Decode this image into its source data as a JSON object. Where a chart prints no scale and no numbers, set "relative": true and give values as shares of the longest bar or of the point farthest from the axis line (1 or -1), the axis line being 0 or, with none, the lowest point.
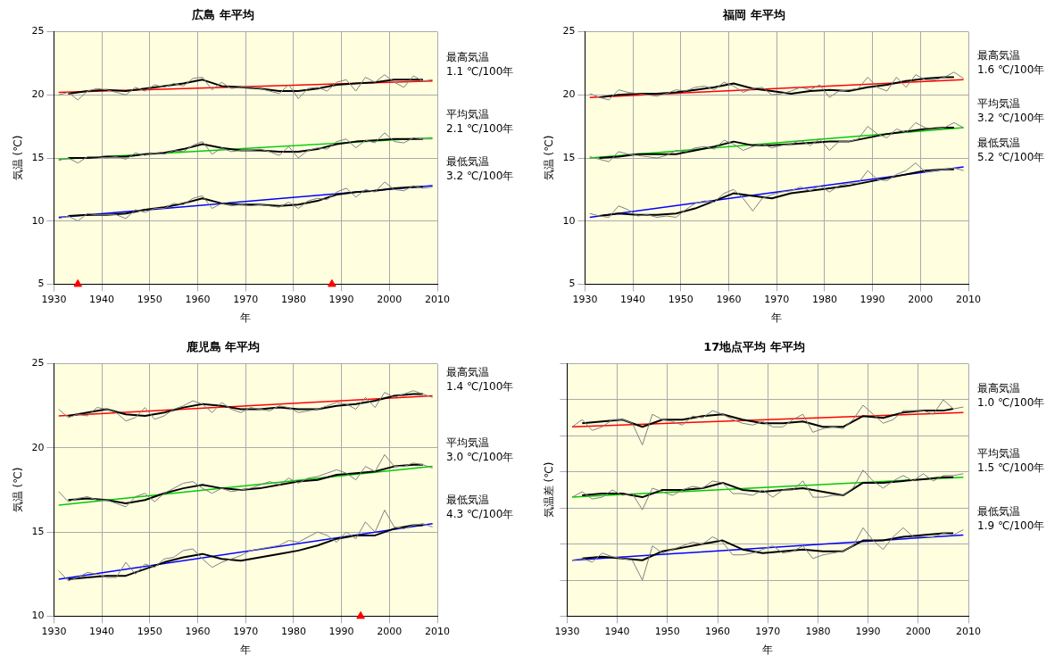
{
  "chart_data": [
    {
      "type": "line",
      "title": "広島 年平均",
      "xlabel": "年",
      "ylabel": "気温 (℃)",
      "xlim": [
        1930,
        2010
      ],
      "xticks": [
        1930,
        1940,
        1950,
        1960,
        1970,
        1980,
        1990,
        2000,
        2010
      ],
      "ylim": [
        5,
        25
      ],
      "yticks": [
        5,
        10,
        15,
        20,
        25
      ],
      "grid": true,
      "marker": "none",
      "line_style": "solid",
      "x": [
        1931,
        1933,
        1935,
        1937,
        1939,
        1941,
        1943,
        1945,
        1947,
        1949,
        1951,
        1953,
        1955,
        1957,
        1959,
        1961,
        1963,
        1965,
        1967,
        1969,
        1971,
        1973,
        1975,
        1977,
        1979,
        1981,
        1983,
        1985,
        1987,
        1989,
        1991,
        1993,
        1995,
        1997,
        1999,
        2001,
        2003,
        2005,
        2007,
        2009
      ],
      "series": [
        {
          "color": "#808080",
          "values": [
            20.0,
            20.2,
            19.6,
            20.3,
            20.5,
            20.4,
            20.2,
            20.0,
            20.6,
            20.3,
            20.8,
            20.6,
            20.9,
            20.7,
            21.3,
            21.4,
            20.4,
            21.0,
            20.5,
            20.6,
            20.6,
            20.5,
            20.3,
            20.1,
            20.8,
            19.7,
            20.5,
            20.6,
            20.3,
            21.0,
            21.2,
            20.3,
            21.4,
            21.0,
            21.6,
            21.0,
            20.6,
            21.5,
            21.1,
            21.2
          ]
        },
        {
          "color": "#000000",
          "x": [
            1933,
            1937,
            1941,
            1945,
            1949,
            1953,
            1957,
            1961,
            1965,
            1969,
            1973,
            1977,
            1981,
            1985,
            1989,
            1993,
            1997,
            2001,
            2005,
            2007
          ],
          "values": [
            20.1,
            20.3,
            20.4,
            20.3,
            20.5,
            20.7,
            20.9,
            21.2,
            20.7,
            20.6,
            20.5,
            20.3,
            20.3,
            20.5,
            20.8,
            20.9,
            21.0,
            21.2,
            21.2,
            21.2
          ]
        },
        {
          "color": "#ff0000",
          "x": [
            1931,
            2009
          ],
          "values": [
            20.2,
            21.1
          ]
        },
        {
          "color": "#808080",
          "values": [
            14.8,
            15.0,
            14.6,
            15.1,
            15.1,
            15.0,
            15.1,
            14.9,
            15.4,
            15.2,
            15.4,
            15.3,
            15.6,
            15.5,
            16.0,
            16.3,
            15.3,
            15.8,
            15.5,
            15.6,
            15.6,
            15.7,
            15.5,
            15.2,
            15.9,
            15.0,
            15.6,
            15.8,
            15.7,
            16.3,
            16.5,
            15.8,
            16.4,
            16.2,
            17.0,
            16.3,
            16.2,
            16.6,
            16.5,
            16.5
          ]
        },
        {
          "color": "#000000",
          "x": [
            1933,
            1937,
            1941,
            1945,
            1949,
            1953,
            1957,
            1961,
            1965,
            1969,
            1973,
            1977,
            1981,
            1985,
            1989,
            1993,
            1997,
            2001,
            2005,
            2007
          ],
          "values": [
            15.0,
            15.0,
            15.1,
            15.1,
            15.3,
            15.4,
            15.7,
            16.1,
            15.8,
            15.6,
            15.6,
            15.5,
            15.5,
            15.7,
            16.1,
            16.3,
            16.4,
            16.5,
            16.5,
            16.5
          ]
        },
        {
          "color": "#00cc00",
          "x": [
            1931,
            2009
          ],
          "values": [
            14.9,
            16.6
          ]
        },
        {
          "color": "#808080",
          "values": [
            10.2,
            10.4,
            10.0,
            10.6,
            10.5,
            10.5,
            10.5,
            10.2,
            10.9,
            10.7,
            11.0,
            11.0,
            11.4,
            11.3,
            11.8,
            12.0,
            11.0,
            11.4,
            11.2,
            11.3,
            11.2,
            11.3,
            11.2,
            11.1,
            11.5,
            11.0,
            11.6,
            11.8,
            11.7,
            12.3,
            12.6,
            11.9,
            12.5,
            12.3,
            13.1,
            12.5,
            12.4,
            12.8,
            12.6,
            12.7
          ]
        },
        {
          "color": "#000000",
          "x": [
            1933,
            1937,
            1941,
            1945,
            1949,
            1953,
            1957,
            1961,
            1965,
            1969,
            1973,
            1977,
            1981,
            1985,
            1989,
            1993,
            1997,
            2001,
            2005,
            2007
          ],
          "values": [
            10.4,
            10.5,
            10.5,
            10.6,
            10.9,
            11.1,
            11.4,
            11.8,
            11.4,
            11.3,
            11.3,
            11.2,
            11.3,
            11.6,
            12.1,
            12.3,
            12.4,
            12.6,
            12.7,
            12.7
          ]
        },
        {
          "color": "#0000ff",
          "x": [
            1931,
            2009
          ],
          "values": [
            10.3,
            12.8
          ]
        },
        {
          "type": "scatter",
          "marker": "triangle",
          "color": "#ff0000",
          "x": [
            1935,
            1988
          ],
          "values": [
            5,
            5
          ]
        }
      ],
      "annotations": [
        "最高気温\n1.1 ℃/100年",
        "平均気温\n2.1 ℃/100年",
        "最低気温\n3.2 ℃/100年"
      ]
    },
    {
      "type": "line",
      "title": "福岡 年平均",
      "xlabel": "年",
      "ylabel": "気温 (℃)",
      "xlim": [
        1930,
        2010
      ],
      "xticks": [
        1930,
        1940,
        1950,
        1960,
        1970,
        1980,
        1990,
        2000,
        2010
      ],
      "ylim": [
        5,
        25
      ],
      "yticks": [
        5,
        10,
        15,
        20,
        25
      ],
      "grid": true,
      "marker": "none",
      "line_style": "solid",
      "x": [
        1931,
        1933,
        1935,
        1937,
        1939,
        1941,
        1943,
        1945,
        1947,
        1949,
        1951,
        1953,
        1955,
        1957,
        1959,
        1961,
        1963,
        1965,
        1967,
        1969,
        1971,
        1973,
        1975,
        1977,
        1979,
        1981,
        1983,
        1985,
        1987,
        1989,
        1991,
        1993,
        1995,
        1997,
        1999,
        2001,
        2003,
        2005,
        2007,
        2009
      ],
      "series": [
        {
          "color": "#808080",
          "values": [
            20.1,
            19.8,
            19.6,
            20.4,
            20.2,
            20.1,
            20.0,
            19.9,
            20.1,
            20.4,
            20.3,
            20.6,
            20.7,
            20.4,
            21.0,
            20.7,
            20.2,
            20.5,
            20.6,
            20.0,
            20.1,
            20.3,
            20.6,
            20.4,
            20.8,
            19.8,
            20.3,
            20.4,
            20.5,
            21.4,
            20.6,
            20.3,
            21.4,
            20.6,
            21.6,
            21.2,
            21.2,
            21.4,
            21.8,
            21.3
          ]
        },
        {
          "color": "#000000",
          "x": [
            1933,
            1937,
            1941,
            1945,
            1949,
            1953,
            1957,
            1961,
            1965,
            1969,
            1973,
            1977,
            1981,
            1985,
            1989,
            1993,
            1997,
            2001,
            2005,
            2007
          ],
          "values": [
            19.8,
            20.0,
            20.1,
            20.1,
            20.2,
            20.4,
            20.6,
            20.9,
            20.5,
            20.3,
            20.1,
            20.3,
            20.4,
            20.3,
            20.6,
            20.8,
            21.1,
            21.3,
            21.4,
            21.4
          ]
        },
        {
          "color": "#ff0000",
          "x": [
            1931,
            2009
          ],
          "values": [
            19.8,
            21.2
          ]
        },
        {
          "color": "#808080",
          "values": [
            15.1,
            14.9,
            14.7,
            15.5,
            15.3,
            15.2,
            15.1,
            15.0,
            15.2,
            15.6,
            15.5,
            15.8,
            15.9,
            15.7,
            16.4,
            16.1,
            15.6,
            15.9,
            16.1,
            15.8,
            16.0,
            16.1,
            16.4,
            16.0,
            16.5,
            15.6,
            16.3,
            16.3,
            16.5,
            17.5,
            16.9,
            16.6,
            17.3,
            17.0,
            17.8,
            17.4,
            17.3,
            17.4,
            17.8,
            17.4
          ]
        },
        {
          "color": "#000000",
          "x": [
            1933,
            1937,
            1941,
            1945,
            1949,
            1953,
            1957,
            1961,
            1965,
            1969,
            1973,
            1977,
            1981,
            1985,
            1989,
            1993,
            1997,
            2001,
            2005,
            2007
          ],
          "values": [
            15.0,
            15.1,
            15.3,
            15.3,
            15.3,
            15.6,
            15.9,
            16.3,
            16.0,
            16.0,
            16.1,
            16.2,
            16.3,
            16.3,
            16.6,
            16.9,
            17.1,
            17.3,
            17.4,
            17.4
          ]
        },
        {
          "color": "#00cc00",
          "x": [
            1931,
            2009
          ],
          "values": [
            15.0,
            17.4
          ]
        },
        {
          "color": "#808080",
          "values": [
            10.6,
            10.4,
            10.3,
            11.2,
            10.9,
            10.4,
            10.5,
            10.3,
            10.4,
            10.3,
            10.9,
            11.4,
            11.6,
            11.5,
            12.2,
            12.5,
            11.8,
            10.8,
            11.8,
            12.1,
            12.3,
            12.4,
            12.7,
            12.4,
            12.8,
            12.3,
            12.8,
            13.0,
            13.0,
            14.0,
            13.3,
            13.2,
            13.7,
            14.0,
            14.6,
            13.9,
            14.0,
            14.1,
            14.2,
            14.0
          ]
        },
        {
          "color": "#000000",
          "x": [
            1933,
            1937,
            1941,
            1945,
            1949,
            1953,
            1957,
            1961,
            1965,
            1969,
            1973,
            1977,
            1981,
            1985,
            1989,
            1993,
            1997,
            2001,
            2005,
            2007
          ],
          "values": [
            10.4,
            10.6,
            10.5,
            10.5,
            10.6,
            11.0,
            11.6,
            12.2,
            12.0,
            11.8,
            12.2,
            12.4,
            12.6,
            12.8,
            13.1,
            13.4,
            13.7,
            14.0,
            14.1,
            14.1
          ]
        },
        {
          "color": "#0000ff",
          "x": [
            1931,
            2009
          ],
          "values": [
            10.3,
            14.3
          ]
        }
      ],
      "annotations": [
        "最高気温\n1.6 ℃/100年",
        "平均気温\n3.2 ℃/100年",
        "最低気温\n5.2 ℃/100年"
      ]
    },
    {
      "type": "line",
      "title": "鹿児島 年平均",
      "xlabel": "年",
      "ylabel": "気温 (℃)",
      "xlim": [
        1930,
        2010
      ],
      "xticks": [
        1930,
        1940,
        1950,
        1960,
        1970,
        1980,
        1990,
        2000,
        2010
      ],
      "ylim": [
        10,
        25
      ],
      "yticks": [
        10,
        15,
        20,
        25
      ],
      "grid": true,
      "marker": "none",
      "line_style": "solid",
      "x": [
        1931,
        1933,
        1935,
        1937,
        1939,
        1941,
        1943,
        1945,
        1947,
        1949,
        1951,
        1953,
        1955,
        1957,
        1959,
        1961,
        1963,
        1965,
        1967,
        1969,
        1971,
        1973,
        1975,
        1977,
        1979,
        1981,
        1983,
        1985,
        1987,
        1989,
        1991,
        1993,
        1995,
        1997,
        1999,
        2001,
        2003,
        2005,
        2007,
        2009
      ],
      "series": [
        {
          "color": "#808080",
          "values": [
            22.3,
            21.8,
            22.0,
            21.9,
            22.4,
            22.3,
            22.1,
            21.6,
            21.8,
            22.4,
            21.7,
            21.9,
            22.3,
            22.5,
            22.8,
            22.6,
            22.1,
            22.7,
            22.3,
            22.1,
            22.4,
            22.3,
            22.2,
            22.5,
            22.4,
            22.1,
            22.2,
            22.3,
            22.5,
            22.7,
            22.6,
            22.3,
            23.0,
            22.4,
            23.3,
            23.0,
            23.2,
            23.4,
            23.2,
            23.0
          ]
        },
        {
          "color": "#000000",
          "x": [
            1933,
            1937,
            1941,
            1945,
            1949,
            1953,
            1957,
            1961,
            1965,
            1969,
            1973,
            1977,
            1981,
            1985,
            1989,
            1993,
            1997,
            2001,
            2005,
            2007
          ],
          "values": [
            21.9,
            22.1,
            22.3,
            22.0,
            21.9,
            22.1,
            22.4,
            22.6,
            22.5,
            22.3,
            22.3,
            22.4,
            22.3,
            22.3,
            22.5,
            22.6,
            22.8,
            23.1,
            23.2,
            23.2
          ]
        },
        {
          "color": "#ff0000",
          "x": [
            1931,
            2009
          ],
          "values": [
            21.9,
            23.1
          ]
        },
        {
          "color": "#808080",
          "values": [
            17.4,
            16.8,
            17.0,
            17.1,
            16.9,
            16.9,
            16.7,
            16.5,
            17.1,
            17.3,
            16.8,
            17.3,
            17.6,
            17.9,
            18.0,
            17.6,
            17.3,
            17.6,
            17.4,
            17.5,
            17.6,
            17.8,
            18.0,
            17.8,
            18.2,
            17.9,
            18.2,
            18.3,
            18.5,
            18.7,
            18.5,
            18.1,
            18.9,
            18.6,
            19.6,
            18.9,
            18.9,
            19.1,
            19.0,
            18.8
          ]
        },
        {
          "color": "#000000",
          "x": [
            1933,
            1937,
            1941,
            1945,
            1949,
            1953,
            1957,
            1961,
            1965,
            1969,
            1973,
            1977,
            1981,
            1985,
            1989,
            1993,
            1997,
            2001,
            2005,
            2007
          ],
          "values": [
            16.9,
            17.0,
            16.9,
            16.7,
            16.9,
            17.3,
            17.6,
            17.8,
            17.6,
            17.5,
            17.6,
            17.8,
            18.0,
            18.1,
            18.4,
            18.5,
            18.6,
            18.9,
            19.0,
            19.0
          ]
        },
        {
          "color": "#00cc00",
          "x": [
            1931,
            2009
          ],
          "values": [
            16.6,
            18.9
          ]
        },
        {
          "color": "#808080",
          "values": [
            12.7,
            12.1,
            12.3,
            12.6,
            12.5,
            12.3,
            12.3,
            13.2,
            12.5,
            13.1,
            12.9,
            13.4,
            13.5,
            13.9,
            14.0,
            13.4,
            12.9,
            13.2,
            13.4,
            13.6,
            13.9,
            14.0,
            14.1,
            14.2,
            14.5,
            14.4,
            14.7,
            15.0,
            14.8,
            14.4,
            15.0,
            14.6,
            15.6,
            15.0,
            16.3,
            15.3,
            15.2,
            15.4,
            15.5,
            15.3
          ]
        },
        {
          "color": "#000000",
          "x": [
            1933,
            1937,
            1941,
            1945,
            1949,
            1953,
            1957,
            1961,
            1965,
            1969,
            1973,
            1977,
            1981,
            1985,
            1989,
            1993,
            1997,
            2001,
            2005,
            2007
          ],
          "values": [
            12.2,
            12.3,
            12.4,
            12.4,
            12.8,
            13.2,
            13.5,
            13.7,
            13.4,
            13.3,
            13.5,
            13.7,
            13.9,
            14.2,
            14.6,
            14.8,
            14.8,
            15.2,
            15.4,
            15.4
          ]
        },
        {
          "color": "#0000ff",
          "x": [
            1931,
            2009
          ],
          "values": [
            12.2,
            15.5
          ]
        },
        {
          "type": "scatter",
          "marker": "triangle",
          "color": "#ff0000",
          "x": [
            1994
          ],
          "values": [
            10
          ]
        }
      ],
      "annotations": [
        "最高気温\n1.4 ℃/100年",
        "平均気温\n3.0 ℃/100年",
        "最低気温\n4.3 ℃/100年"
      ]
    },
    {
      "type": "line",
      "title": "17地点平均 年平均",
      "xlabel": "年",
      "ylabel": "気温差 (℃)",
      "xlim": [
        1930,
        2010
      ],
      "xticks": [
        1930,
        1940,
        1950,
        1960,
        1970,
        1980,
        1990,
        2000,
        2010
      ],
      "relative": true,
      "tick_labels": "x",
      "grid": true,
      "marker": "none",
      "line_style": "solid",
      "x": [
        1931,
        1933,
        1935,
        1937,
        1939,
        1941,
        1943,
        1945,
        1947,
        1949,
        1951,
        1953,
        1955,
        1957,
        1959,
        1961,
        1963,
        1965,
        1967,
        1969,
        1971,
        1973,
        1975,
        1977,
        1979,
        1981,
        1983,
        1985,
        1987,
        1989,
        1991,
        1993,
        1995,
        1997,
        1999,
        2001,
        2003,
        2005,
        2007,
        2009
      ],
      "series": [
        {
          "color": "#808080",
          "values": [
            0.85,
            0.89,
            0.83,
            0.85,
            0.89,
            0.89,
            0.87,
            0.75,
            0.92,
            0.89,
            0.88,
            0.86,
            0.91,
            0.9,
            0.94,
            0.92,
            0.89,
            0.87,
            0.86,
            0.88,
            0.85,
            0.85,
            0.89,
            0.92,
            0.82,
            0.84,
            0.85,
            0.84,
            0.89,
            0.97,
            0.92,
            0.87,
            0.89,
            0.94,
            0.94,
            0.94,
            0.92,
            1,
            0.95,
            0.96
          ]
        },
        {
          "color": "#000000",
          "x": [
            1933,
            1937,
            1941,
            1945,
            1949,
            1953,
            1957,
            1961,
            1965,
            1969,
            1973,
            1977,
            1981,
            1985,
            1989,
            1993,
            1997,
            2001,
            2005,
            2007
          ],
          "values": [
            0.87,
            0.88,
            0.89,
            0.85,
            0.89,
            0.89,
            0.91,
            0.92,
            0.89,
            0.87,
            0.87,
            0.88,
            0.85,
            0.85,
            0.91,
            0.9,
            0.93,
            0.94,
            0.94,
            0.95
          ]
        },
        {
          "color": "#ff0000",
          "x": [
            1931,
            2009
          ],
          "values": [
            0.85,
            0.93
          ]
        },
        {
          "color": "#808080",
          "values": [
            0.46,
            0.49,
            0.45,
            0.46,
            0.5,
            0.47,
            0.48,
            0.39,
            0.51,
            0.49,
            0.47,
            0.5,
            0.52,
            0.51,
            0.55,
            0.54,
            0.48,
            0.48,
            0.47,
            0.5,
            0.46,
            0.5,
            0.5,
            0.55,
            0.46,
            0.46,
            0.47,
            0.47,
            0.51,
            0.61,
            0.55,
            0.51,
            0.55,
            0.58,
            0.55,
            0.59,
            0.55,
            0.58,
            0.58,
            0.59
          ]
        },
        {
          "color": "#000000",
          "x": [
            1933,
            1937,
            1941,
            1945,
            1949,
            1953,
            1957,
            1961,
            1965,
            1969,
            1973,
            1977,
            1981,
            1985,
            1989,
            1993,
            1997,
            2001,
            2005,
            2007
          ],
          "values": [
            0.47,
            0.48,
            0.48,
            0.46,
            0.5,
            0.5,
            0.51,
            0.54,
            0.5,
            0.49,
            0.5,
            0.51,
            0.49,
            0.47,
            0.54,
            0.54,
            0.55,
            0.56,
            0.57,
            0.57
          ]
        },
        {
          "color": "#00cc00",
          "x": [
            1931,
            2009
          ],
          "values": [
            0.46,
            0.57
          ]
        },
        {
          "color": "#808080",
          "values": [
            0.11,
            0.12,
            0.1,
            0.15,
            0.13,
            0.12,
            0.11,
            0,
            0.19,
            0.15,
            0.17,
            0.19,
            0.21,
            0.2,
            0.24,
            0.21,
            0.14,
            0.14,
            0.15,
            0.17,
            0.19,
            0.15,
            0.16,
            0.19,
            0.12,
            0.14,
            0.15,
            0.16,
            0.19,
            0.29,
            0.22,
            0.17,
            0.24,
            0.29,
            0.24,
            0.24,
            0.24,
            0.26,
            0.25,
            0.28
          ]
        },
        {
          "color": "#000000",
          "x": [
            1933,
            1937,
            1941,
            1945,
            1949,
            1953,
            1957,
            1961,
            1965,
            1969,
            1973,
            1977,
            1981,
            1985,
            1989,
            1993,
            1997,
            2001,
            2005,
            2007
          ],
          "values": [
            0.12,
            0.13,
            0.12,
            0.11,
            0.16,
            0.18,
            0.2,
            0.22,
            0.17,
            0.15,
            0.16,
            0.17,
            0.16,
            0.16,
            0.22,
            0.22,
            0.24,
            0.25,
            0.26,
            0.26
          ]
        },
        {
          "color": "#0000ff",
          "x": [
            1931,
            2009
          ],
          "values": [
            0.11,
            0.25
          ]
        }
      ],
      "annotations": [
        "最高気温\n1.0 ℃/100年",
        "平均気温\n1.5 ℃/100年",
        "最低気温\n1.9 ℃/100年"
      ]
    }
  ]
}
